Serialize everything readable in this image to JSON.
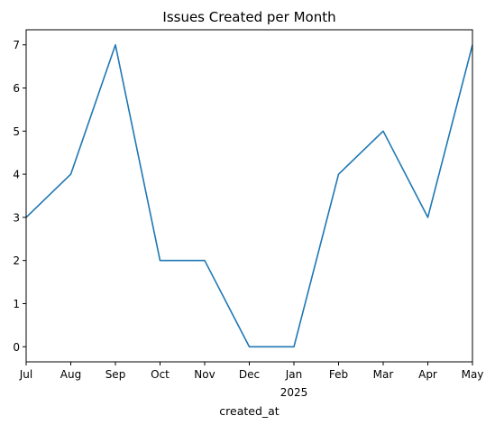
{
  "chart_data": {
    "type": "line",
    "title": "Issues Created per Month",
    "xlabel": "created_at",
    "ylabel": "",
    "categories": [
      "Jul",
      "Aug",
      "Sep",
      "Oct",
      "Nov",
      "Dec",
      "Jan",
      "Feb",
      "Mar",
      "Apr",
      "May"
    ],
    "year_label": "2025",
    "series": [
      {
        "values": [
          3,
          4,
          7,
          2,
          2,
          0,
          0,
          4,
          5,
          3,
          7
        ],
        "color": "#1f77b4"
      }
    ],
    "ylim": [
      -0.35,
      7.35
    ],
    "yticks": [
      0,
      1,
      2,
      3,
      4,
      5,
      6,
      7
    ],
    "grid": false,
    "legend": "none"
  }
}
